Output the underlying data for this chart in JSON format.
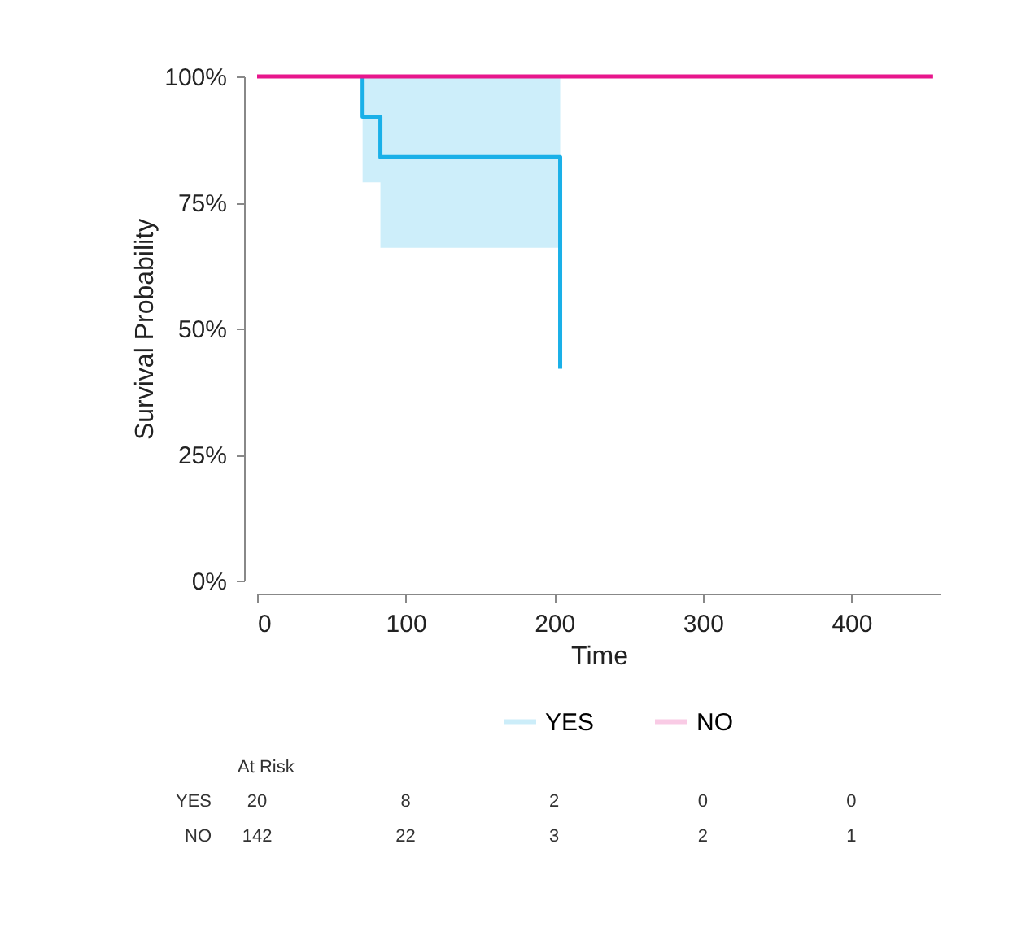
{
  "chart_data": {
    "type": "step",
    "xlabel": "Time",
    "ylabel": "Survival Probability",
    "xlim": [
      0,
      460
    ],
    "xticks": [
      0,
      100,
      200,
      300,
      400
    ],
    "ylim": [
      0,
      100
    ],
    "yticks": [
      {
        "value": 0,
        "label": "0%"
      },
      {
        "value": 25,
        "label": "25%"
      },
      {
        "value": 50,
        "label": "50%"
      },
      {
        "value": 75,
        "label": "75%"
      },
      {
        "value": 100,
        "label": "100%"
      }
    ],
    "series": [
      {
        "name": "YES",
        "color": "#1ab0e8",
        "x": [
          71,
          71,
          83,
          204
        ],
        "values": [
          100,
          92,
          84,
          42
        ],
        "lower": [
          null,
          79,
          66,
          66
        ],
        "upper": [
          null,
          100,
          100,
          100
        ]
      },
      {
        "name": "NO",
        "color": "#e8168c",
        "x": [
          0,
          455
        ],
        "values": [
          100,
          100
        ]
      }
    ],
    "legend": "bottom",
    "grid": false,
    "annotations": [
      "At Risk",
      "YES",
      "20",
      "8",
      "2",
      "0",
      "0",
      "NO",
      "142",
      "22",
      "3",
      "2",
      "1"
    ]
  }
}
